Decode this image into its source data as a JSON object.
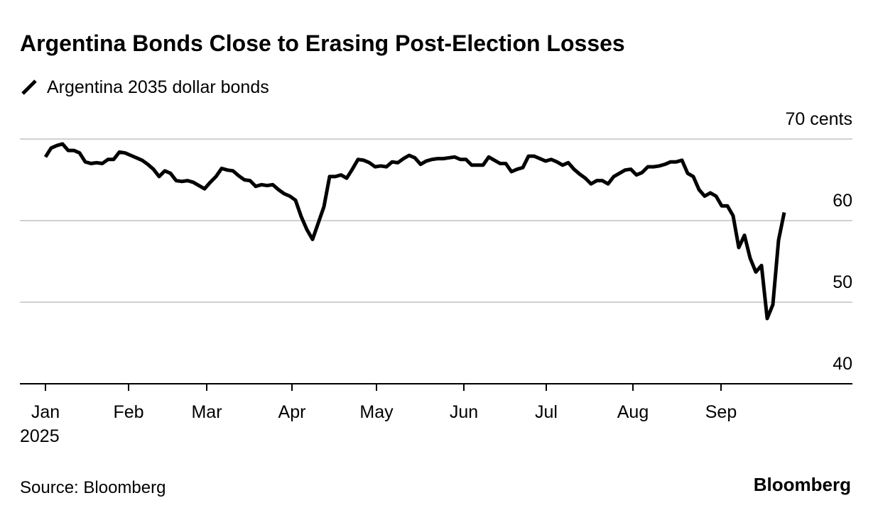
{
  "chart_data": {
    "type": "line",
    "title": "Argentina Bonds Close to Erasing Post-Election Losses",
    "source": "Source: Bloomberg",
    "brand": "Bloomberg",
    "series": [
      {
        "name": "Argentina 2035 dollar bonds",
        "color": "#000000",
        "values": [
          67.8,
          68.9,
          69.2,
          69.4,
          68.6,
          68.6,
          68.3,
          67.2,
          67.0,
          67.1,
          67.0,
          67.5,
          67.5,
          68.4,
          68.3,
          68.0,
          67.7,
          67.4,
          66.9,
          66.3,
          65.4,
          66.1,
          65.8,
          64.9,
          64.8,
          64.9,
          64.7,
          64.3,
          63.9,
          64.7,
          65.4,
          66.4,
          66.2,
          66.1,
          65.5,
          65.0,
          64.9,
          64.2,
          64.4,
          64.3,
          64.4,
          63.8,
          63.3,
          63.0,
          62.5,
          60.5,
          58.9,
          57.7,
          59.7,
          61.7,
          65.4,
          65.4,
          65.6,
          65.2,
          66.3,
          67.5,
          67.4,
          67.1,
          66.6,
          66.7,
          66.6,
          67.2,
          67.1,
          67.6,
          68.0,
          67.7,
          66.9,
          67.3,
          67.5,
          67.6,
          67.6,
          67.7,
          67.8,
          67.5,
          67.5,
          66.8,
          66.8,
          66.8,
          67.8,
          67.4,
          67.0,
          67.0,
          66.0,
          66.3,
          66.5,
          67.9,
          67.9,
          67.6,
          67.3,
          67.5,
          67.2,
          66.8,
          67.1,
          66.3,
          65.7,
          65.2,
          64.5,
          64.9,
          64.9,
          64.5,
          65.4,
          65.8,
          66.2,
          66.3,
          65.6,
          65.9,
          66.6,
          66.6,
          66.7,
          66.9,
          67.2,
          67.2,
          67.4,
          65.8,
          65.4,
          63.8,
          63.0,
          63.4,
          63.0,
          61.8,
          61.8,
          60.6,
          56.7,
          58.2,
          55.4,
          53.7,
          54.5,
          48.0,
          49.7,
          57.6,
          61.0
        ]
      }
    ],
    "xlim": [
      -4.5,
      142
    ],
    "xticks": [
      {
        "value": 0,
        "label": "Jan\n2025"
      },
      {
        "value": 14.625,
        "label": "Feb"
      },
      {
        "value": 28.375,
        "label": "Mar"
      },
      {
        "value": 43.375,
        "label": "Apr"
      },
      {
        "value": 58.25,
        "label": "May"
      },
      {
        "value": 73.625,
        "label": "Jun"
      },
      {
        "value": 88.125,
        "label": "Jul"
      },
      {
        "value": 103.375,
        "label": "Aug"
      },
      {
        "value": 118.875,
        "label": "Sep"
      }
    ],
    "ylim": [
      40,
      70
    ],
    "yticks": [
      40,
      50,
      60,
      {
        "value": 70,
        "label": "70 cents"
      }
    ],
    "grid": true
  }
}
